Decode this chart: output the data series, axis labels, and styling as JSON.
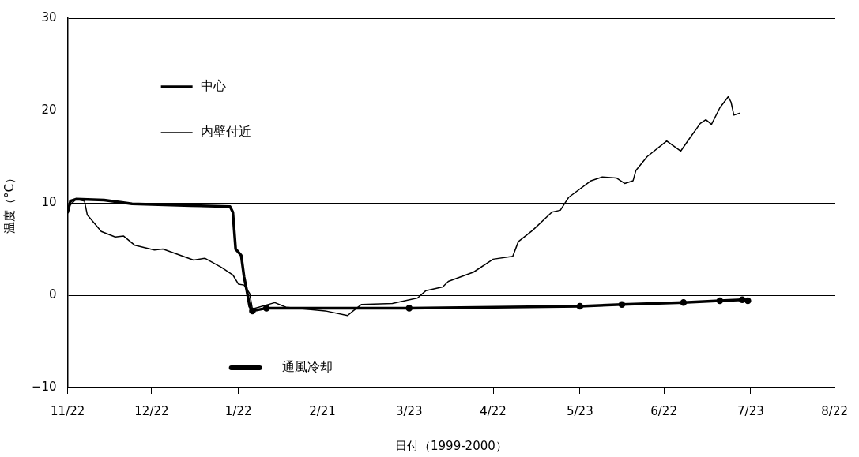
{
  "chart_data": {
    "type": "line",
    "xlabel": "日付（1999-2000）",
    "ylabel": "温度（°C）",
    "xlim": [
      "1999-11-22",
      "2000-08-22"
    ],
    "xticks": [
      {
        "value": "1999-11-22",
        "label": "11/22"
      },
      {
        "value": "1999-12-22",
        "label": "12/22"
      },
      {
        "value": "2000-01-22",
        "label": "1/22"
      },
      {
        "value": "2000-02-21",
        "label": "2/21"
      },
      {
        "value": "2000-03-23",
        "label": "3/23"
      },
      {
        "value": "2000-04-22",
        "label": "4/22"
      },
      {
        "value": "2000-05-23",
        "label": "5/23"
      },
      {
        "value": "2000-06-22",
        "label": "6/22"
      },
      {
        "value": "2000-07-23",
        "label": "7/23"
      },
      {
        "value": "2000-08-22",
        "label": "8/22"
      }
    ],
    "ylim": [
      -10,
      30
    ],
    "yticks": [
      -10,
      0,
      10,
      20,
      30
    ],
    "grid": "y",
    "legend": "left",
    "line_style": "solid",
    "series": [
      {
        "name": "中心",
        "color": "#000000",
        "marker": "none",
        "x": [
          "1999-11-22",
          "1999-11-23",
          "1999-11-25",
          "1999-12-05",
          "1999-12-15",
          "2000-01-05",
          "2000-01-19",
          "2000-01-20",
          "2000-01-21",
          "2000-01-23",
          "2000-01-24",
          "2000-01-25",
          "2000-01-26",
          "2000-01-27"
        ],
        "values": [
          9.0,
          10.2,
          10.4,
          10.3,
          9.9,
          9.7,
          9.6,
          9.0,
          5.0,
          4.3,
          2.0,
          0.5,
          -1.2,
          -1.7
        ]
      },
      {
        "name": "内壁付近",
        "color": "#000000",
        "marker": "none",
        "x": [
          "1999-11-22",
          "1999-11-25",
          "1999-11-28",
          "1999-11-29",
          "1999-12-04",
          "1999-12-09",
          "1999-12-12",
          "1999-12-16",
          "1999-12-23",
          "1999-12-26",
          "2000-01-06",
          "2000-01-10",
          "2000-01-16",
          "2000-01-20",
          "2000-01-22",
          "2000-01-24",
          "2000-01-26",
          "2000-01-27",
          "2000-02-04",
          "2000-02-08",
          "2000-02-22",
          "2000-03-01",
          "2000-03-03",
          "2000-03-06",
          "2000-03-17",
          "2000-03-26",
          "2000-03-29",
          "2000-04-04",
          "2000-04-06",
          "2000-04-15",
          "2000-04-22",
          "2000-04-29",
          "2000-05-01",
          "2000-05-06",
          "2000-05-13",
          "2000-05-16",
          "2000-05-19",
          "2000-05-27",
          "2000-05-31",
          "2000-06-05",
          "2000-06-08",
          "2000-06-11",
          "2000-06-12",
          "2000-06-16",
          "2000-06-23",
          "2000-06-28",
          "2000-07-01",
          "2000-07-05",
          "2000-07-07",
          "2000-07-09",
          "2000-07-12",
          "2000-07-15",
          "2000-07-16",
          "2000-07-17",
          "2000-07-19"
        ],
        "values": [
          9.5,
          10.4,
          10.2,
          8.7,
          6.9,
          6.3,
          6.4,
          5.4,
          4.9,
          5.0,
          3.8,
          4.0,
          3.0,
          2.2,
          1.2,
          1.1,
          0.2,
          -1.5,
          -0.8,
          -1.3,
          -1.7,
          -2.2,
          -1.7,
          -1.0,
          -0.9,
          -0.3,
          0.5,
          0.9,
          1.5,
          2.5,
          3.9,
          4.2,
          5.8,
          7.0,
          9.0,
          9.2,
          10.6,
          12.4,
          12.8,
          12.7,
          12.1,
          12.4,
          13.5,
          15.0,
          16.7,
          15.6,
          16.9,
          18.6,
          19.0,
          18.5,
          20.3,
          21.5,
          20.9,
          19.5,
          19.7
        ]
      },
      {
        "name": "通風冷却",
        "color": "#000000",
        "marker": "circle",
        "x": [
          "2000-01-27",
          "2000-02-01",
          "2000-03-23",
          "2000-05-23",
          "2000-06-07",
          "2000-06-29",
          "2000-07-12",
          "2000-07-20",
          "2000-07-22"
        ],
        "values": [
          -1.7,
          -1.4,
          -1.4,
          -1.2,
          -1.0,
          -0.8,
          -0.6,
          -0.5,
          -0.6
        ]
      }
    ]
  }
}
